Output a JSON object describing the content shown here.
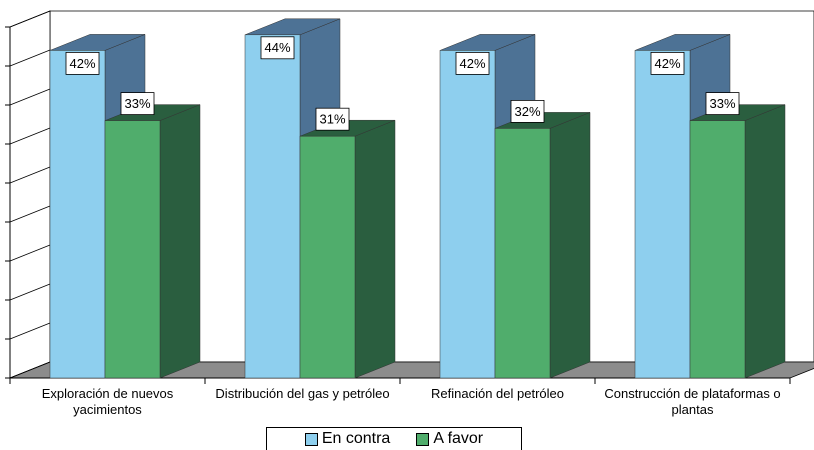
{
  "chart_data": {
    "type": "bar3d",
    "categories": [
      "Exploración de nuevos yacimientos",
      "Distribución del gas y petróleo",
      "Refinación del petróleo",
      "Construcción de plataformas o plantas"
    ],
    "series": [
      {
        "name": "En contra",
        "color": "#8ecfee",
        "side_color": "#4d7295",
        "values": [
          42,
          44,
          42,
          42
        ],
        "value_labels": [
          "42%",
          "44%",
          "42%",
          "42%"
        ]
      },
      {
        "name": "A favor",
        "color": "#50ad6c",
        "side_color": "#2a5e3f",
        "values": [
          33,
          31,
          32,
          33
        ],
        "value_labels": [
          "33%",
          "31%",
          "32%",
          "33%"
        ]
      }
    ],
    "ylim": [
      0,
      45
    ],
    "yticks": [
      0,
      5,
      10,
      15,
      20,
      25,
      30,
      35,
      40,
      45
    ],
    "legend": "bottom"
  }
}
